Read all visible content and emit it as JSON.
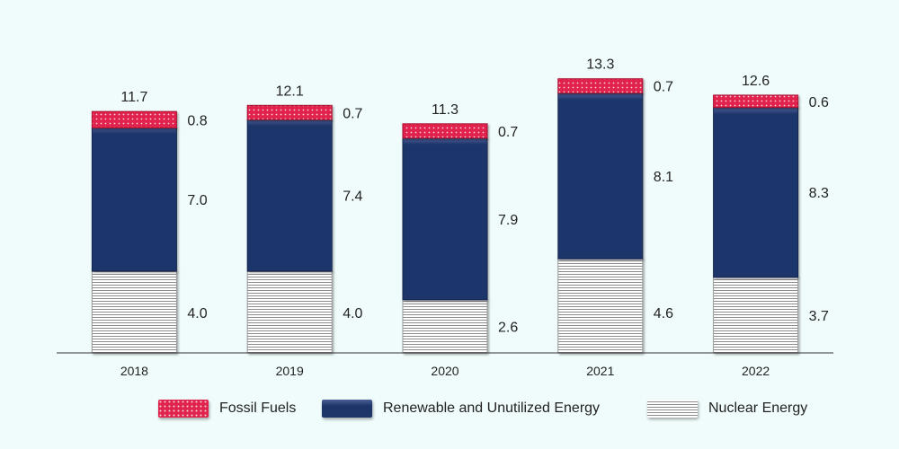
{
  "chart_data": {
    "type": "bar",
    "stacked": true,
    "categories": [
      "2018",
      "2019",
      "2020",
      "2021",
      "2022"
    ],
    "series": [
      {
        "name": "Nuclear Energy",
        "key": "nuclear",
        "values": [
          4.0,
          4.0,
          2.6,
          4.6,
          3.7
        ],
        "labels": [
          "4.0",
          "4.0",
          "2.6",
          "4.6",
          "3.7"
        ]
      },
      {
        "name": "Renewable and Unutilized Energy",
        "key": "renew",
        "values": [
          7.0,
          7.4,
          7.9,
          8.1,
          8.3
        ],
        "labels": [
          "7.0",
          "7.4",
          "7.9",
          "8.1",
          "8.3"
        ]
      },
      {
        "name": "Fossil Fuels",
        "key": "fossil",
        "values": [
          0.8,
          0.7,
          0.7,
          0.7,
          0.6
        ],
        "labels": [
          "0.8",
          "0.7",
          "0.7",
          "0.7",
          "0.6"
        ]
      }
    ],
    "totals": [
      "11.7",
      "12.1",
      "11.3",
      "13.3",
      "12.6"
    ],
    "legend_order": [
      "fossil",
      "renew",
      "nuclear"
    ],
    "legend_position": "bottom",
    "ylim": [
      0,
      13.3
    ],
    "grid": false,
    "title": "",
    "xlabel": "",
    "ylabel": "",
    "colors": {
      "fossil": "#e0234d",
      "renew": "#1e356a",
      "nuclear_line": "#8c8c8c"
    }
  },
  "legend": {
    "fossil": "Fossil Fuels",
    "renew": "Renewable and Unutilized Energy",
    "nuclear": "Nuclear Energy"
  }
}
